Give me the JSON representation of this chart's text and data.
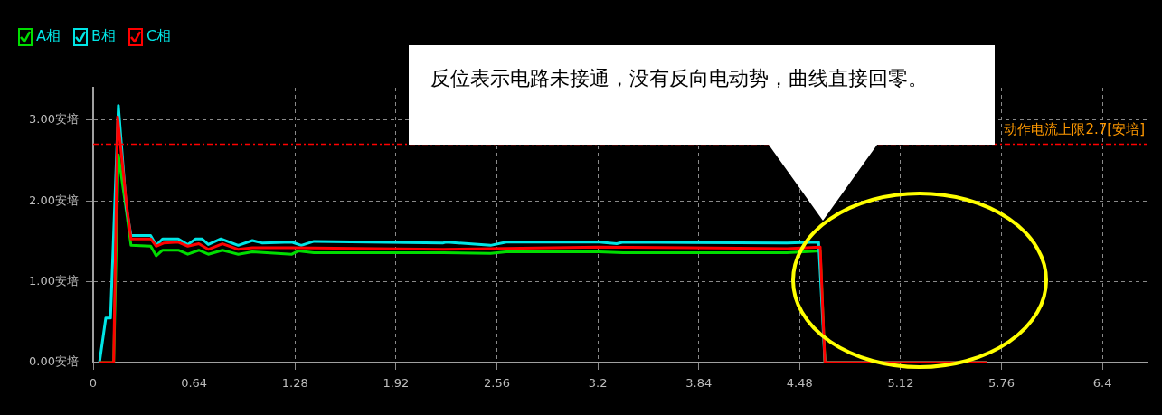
{
  "chart_data": {
    "type": "line",
    "series": [
      {
        "name": "A相",
        "color": "#00dd00",
        "x": [
          0.04,
          0.13,
          0.16,
          0.21,
          0.24,
          0.365,
          0.4,
          0.44,
          0.54,
          0.6,
          0.67,
          0.73,
          0.82,
          0.92,
          1.01,
          1.26,
          1.3,
          1.4,
          2.22,
          2.52,
          2.62,
          3.21,
          3.36,
          4.4,
          4.61,
          4.64,
          5.67
        ],
        "values": [
          0,
          0,
          2.57,
          1.88,
          1.45,
          1.44,
          1.32,
          1.39,
          1.39,
          1.34,
          1.39,
          1.34,
          1.39,
          1.34,
          1.37,
          1.34,
          1.38,
          1.36,
          1.36,
          1.35,
          1.37,
          1.37,
          1.36,
          1.36,
          1.38,
          0,
          0
        ]
      },
      {
        "name": "B相",
        "color": "#00e5e5",
        "x": [
          0.04,
          0.08,
          0.11,
          0.16,
          0.21,
          0.24,
          0.365,
          0.4,
          0.44,
          0.54,
          0.6,
          0.65,
          0.69,
          0.73,
          0.81,
          0.92,
          1.01,
          1.07,
          1.26,
          1.32,
          1.4,
          2.22,
          2.24,
          2.52,
          2.62,
          3.21,
          3.32,
          3.36,
          4.4,
          4.6,
          4.64,
          5.67
        ],
        "values": [
          0,
          0.55,
          0.55,
          3.18,
          1.92,
          1.57,
          1.57,
          1.45,
          1.53,
          1.53,
          1.46,
          1.53,
          1.53,
          1.46,
          1.53,
          1.45,
          1.51,
          1.48,
          1.49,
          1.45,
          1.5,
          1.48,
          1.49,
          1.45,
          1.49,
          1.49,
          1.47,
          1.49,
          1.48,
          1.49,
          0,
          0
        ]
      },
      {
        "name": "C相",
        "color": "#ff0000",
        "x": [
          0.04,
          0.13,
          0.155,
          0.21,
          0.24,
          0.365,
          0.4,
          0.45,
          0.54,
          0.6,
          0.67,
          0.73,
          0.82,
          0.92,
          1.01,
          1.26,
          2.22,
          3.21,
          4.4,
          4.61,
          4.64,
          5.67
        ],
        "values": [
          0,
          0,
          3.04,
          1.98,
          1.53,
          1.53,
          1.44,
          1.48,
          1.49,
          1.44,
          1.47,
          1.4,
          1.47,
          1.4,
          1.42,
          1.42,
          1.4,
          1.43,
          1.41,
          1.43,
          0,
          0
        ]
      }
    ],
    "xlim": [
      0,
      6.68
    ],
    "xticks": [
      0,
      0.64,
      1.28,
      1.92,
      2.56,
      3.2,
      3.84,
      4.48,
      5.12,
      5.76,
      6.4
    ],
    "ylim": [
      0,
      3.4
    ],
    "yticks": [
      {
        "value": 0,
        "label": "0.00安培"
      },
      {
        "value": 1,
        "label": "1.00安培"
      },
      {
        "value": 2,
        "label": "2.00安培"
      },
      {
        "value": 3,
        "label": "3.00安培"
      }
    ],
    "ref_lines": [
      {
        "axis": "y",
        "value": 2.7,
        "label": "动作电流上限2.7[安培]",
        "color": "#ff0000",
        "line_style": "dashdot"
      }
    ],
    "annotations": [
      "反位表示电路未接通，没有反向电动势，曲线直接回零。"
    ],
    "grid": true,
    "legend": "top left",
    "marker": "none",
    "line_style": "solid"
  }
}
